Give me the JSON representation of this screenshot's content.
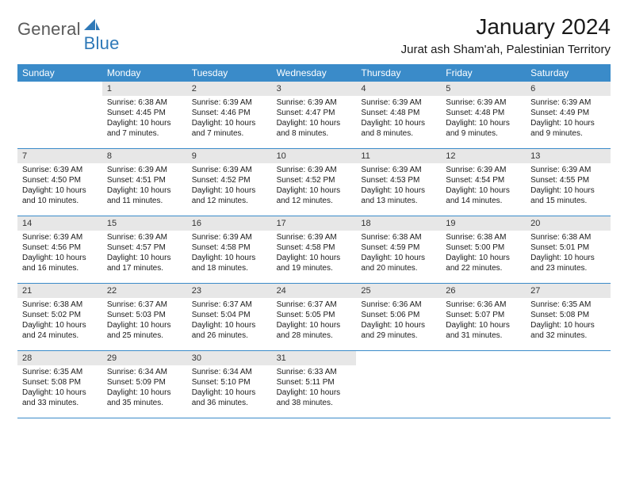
{
  "brand": {
    "word1": "General",
    "word2": "Blue"
  },
  "title": "January 2024",
  "location": "Jurat ash Sham'ah, Palestinian Territory",
  "colors": {
    "header_blue": "#3a8bc9",
    "daynum_bg": "#e7e7e7",
    "text": "#1a1a1a",
    "logo_gray": "#5a5a5a",
    "logo_blue": "#2f79b8"
  },
  "daynames": [
    "Sunday",
    "Monday",
    "Tuesday",
    "Wednesday",
    "Thursday",
    "Friday",
    "Saturday"
  ],
  "weeks": [
    [
      null,
      {
        "n": "1",
        "sr": "Sunrise: 6:38 AM",
        "ss": "Sunset: 4:45 PM",
        "d1": "Daylight: 10 hours",
        "d2": "and 7 minutes."
      },
      {
        "n": "2",
        "sr": "Sunrise: 6:39 AM",
        "ss": "Sunset: 4:46 PM",
        "d1": "Daylight: 10 hours",
        "d2": "and 7 minutes."
      },
      {
        "n": "3",
        "sr": "Sunrise: 6:39 AM",
        "ss": "Sunset: 4:47 PM",
        "d1": "Daylight: 10 hours",
        "d2": "and 8 minutes."
      },
      {
        "n": "4",
        "sr": "Sunrise: 6:39 AM",
        "ss": "Sunset: 4:48 PM",
        "d1": "Daylight: 10 hours",
        "d2": "and 8 minutes."
      },
      {
        "n": "5",
        "sr": "Sunrise: 6:39 AM",
        "ss": "Sunset: 4:48 PM",
        "d1": "Daylight: 10 hours",
        "d2": "and 9 minutes."
      },
      {
        "n": "6",
        "sr": "Sunrise: 6:39 AM",
        "ss": "Sunset: 4:49 PM",
        "d1": "Daylight: 10 hours",
        "d2": "and 9 minutes."
      }
    ],
    [
      {
        "n": "7",
        "sr": "Sunrise: 6:39 AM",
        "ss": "Sunset: 4:50 PM",
        "d1": "Daylight: 10 hours",
        "d2": "and 10 minutes."
      },
      {
        "n": "8",
        "sr": "Sunrise: 6:39 AM",
        "ss": "Sunset: 4:51 PM",
        "d1": "Daylight: 10 hours",
        "d2": "and 11 minutes."
      },
      {
        "n": "9",
        "sr": "Sunrise: 6:39 AM",
        "ss": "Sunset: 4:52 PM",
        "d1": "Daylight: 10 hours",
        "d2": "and 12 minutes."
      },
      {
        "n": "10",
        "sr": "Sunrise: 6:39 AM",
        "ss": "Sunset: 4:52 PM",
        "d1": "Daylight: 10 hours",
        "d2": "and 12 minutes."
      },
      {
        "n": "11",
        "sr": "Sunrise: 6:39 AM",
        "ss": "Sunset: 4:53 PM",
        "d1": "Daylight: 10 hours",
        "d2": "and 13 minutes."
      },
      {
        "n": "12",
        "sr": "Sunrise: 6:39 AM",
        "ss": "Sunset: 4:54 PM",
        "d1": "Daylight: 10 hours",
        "d2": "and 14 minutes."
      },
      {
        "n": "13",
        "sr": "Sunrise: 6:39 AM",
        "ss": "Sunset: 4:55 PM",
        "d1": "Daylight: 10 hours",
        "d2": "and 15 minutes."
      }
    ],
    [
      {
        "n": "14",
        "sr": "Sunrise: 6:39 AM",
        "ss": "Sunset: 4:56 PM",
        "d1": "Daylight: 10 hours",
        "d2": "and 16 minutes."
      },
      {
        "n": "15",
        "sr": "Sunrise: 6:39 AM",
        "ss": "Sunset: 4:57 PM",
        "d1": "Daylight: 10 hours",
        "d2": "and 17 minutes."
      },
      {
        "n": "16",
        "sr": "Sunrise: 6:39 AM",
        "ss": "Sunset: 4:58 PM",
        "d1": "Daylight: 10 hours",
        "d2": "and 18 minutes."
      },
      {
        "n": "17",
        "sr": "Sunrise: 6:39 AM",
        "ss": "Sunset: 4:58 PM",
        "d1": "Daylight: 10 hours",
        "d2": "and 19 minutes."
      },
      {
        "n": "18",
        "sr": "Sunrise: 6:38 AM",
        "ss": "Sunset: 4:59 PM",
        "d1": "Daylight: 10 hours",
        "d2": "and 20 minutes."
      },
      {
        "n": "19",
        "sr": "Sunrise: 6:38 AM",
        "ss": "Sunset: 5:00 PM",
        "d1": "Daylight: 10 hours",
        "d2": "and 22 minutes."
      },
      {
        "n": "20",
        "sr": "Sunrise: 6:38 AM",
        "ss": "Sunset: 5:01 PM",
        "d1": "Daylight: 10 hours",
        "d2": "and 23 minutes."
      }
    ],
    [
      {
        "n": "21",
        "sr": "Sunrise: 6:38 AM",
        "ss": "Sunset: 5:02 PM",
        "d1": "Daylight: 10 hours",
        "d2": "and 24 minutes."
      },
      {
        "n": "22",
        "sr": "Sunrise: 6:37 AM",
        "ss": "Sunset: 5:03 PM",
        "d1": "Daylight: 10 hours",
        "d2": "and 25 minutes."
      },
      {
        "n": "23",
        "sr": "Sunrise: 6:37 AM",
        "ss": "Sunset: 5:04 PM",
        "d1": "Daylight: 10 hours",
        "d2": "and 26 minutes."
      },
      {
        "n": "24",
        "sr": "Sunrise: 6:37 AM",
        "ss": "Sunset: 5:05 PM",
        "d1": "Daylight: 10 hours",
        "d2": "and 28 minutes."
      },
      {
        "n": "25",
        "sr": "Sunrise: 6:36 AM",
        "ss": "Sunset: 5:06 PM",
        "d1": "Daylight: 10 hours",
        "d2": "and 29 minutes."
      },
      {
        "n": "26",
        "sr": "Sunrise: 6:36 AM",
        "ss": "Sunset: 5:07 PM",
        "d1": "Daylight: 10 hours",
        "d2": "and 31 minutes."
      },
      {
        "n": "27",
        "sr": "Sunrise: 6:35 AM",
        "ss": "Sunset: 5:08 PM",
        "d1": "Daylight: 10 hours",
        "d2": "and 32 minutes."
      }
    ],
    [
      {
        "n": "28",
        "sr": "Sunrise: 6:35 AM",
        "ss": "Sunset: 5:08 PM",
        "d1": "Daylight: 10 hours",
        "d2": "and 33 minutes."
      },
      {
        "n": "29",
        "sr": "Sunrise: 6:34 AM",
        "ss": "Sunset: 5:09 PM",
        "d1": "Daylight: 10 hours",
        "d2": "and 35 minutes."
      },
      {
        "n": "30",
        "sr": "Sunrise: 6:34 AM",
        "ss": "Sunset: 5:10 PM",
        "d1": "Daylight: 10 hours",
        "d2": "and 36 minutes."
      },
      {
        "n": "31",
        "sr": "Sunrise: 6:33 AM",
        "ss": "Sunset: 5:11 PM",
        "d1": "Daylight: 10 hours",
        "d2": "and 38 minutes."
      },
      null,
      null,
      null
    ]
  ]
}
